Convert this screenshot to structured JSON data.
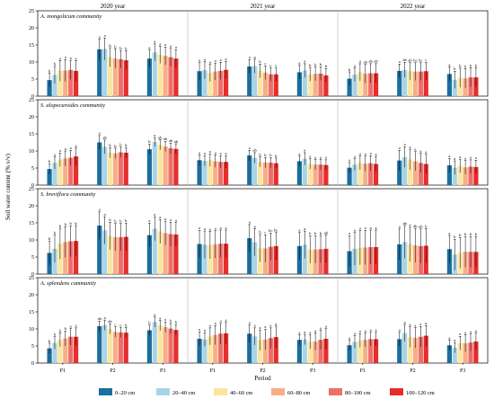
{
  "chart_data": {
    "type": "bar",
    "ylabel": "Soil water content (% v/v)",
    "xlabel": "Period",
    "ylim": [
      0,
      25
    ],
    "yticks": [
      0,
      5,
      10,
      15,
      20,
      25
    ],
    "years": [
      "2020 year",
      "2021 year",
      "2022 year"
    ],
    "periods": [
      "P1",
      "P2",
      "P3"
    ],
    "legend": {
      "position": "bottom",
      "entries": [
        "0–20 cm",
        "20–40 cm",
        "40–60 cm",
        "60–80 cm",
        "80–100 cm",
        "100–120 cm"
      ],
      "colors": [
        "#1b6e9e",
        "#a8d4e6",
        "#fbe5a0",
        "#f7ae86",
        "#ed6f6a",
        "#e62e2a"
      ]
    },
    "panels": [
      {
        "community": "A. mongolicum community",
        "groups": [
          {
            "means": [
              4.7,
              6.2,
              7.4,
              7.5,
              7.7,
              7.4
            ],
            "errors": [
              2.0,
              2.5,
              3.0,
              3.2,
              2.8,
              3.0
            ],
            "labels": [
              "b",
              "b",
              "a",
              "a",
              "a",
              "a"
            ]
          },
          {
            "means": [
              13.7,
              13.8,
              11.4,
              11.0,
              10.8,
              10.5
            ],
            "errors": [
              3.0,
              3.2,
              2.8,
              2.8,
              2.6,
              2.8
            ],
            "labels": [
              "a",
              "a",
              "b",
              "b",
              "b",
              "b"
            ]
          },
          {
            "means": [
              11.0,
              12.8,
              12.1,
              11.8,
              11.4,
              11.0
            ],
            "errors": [
              2.5,
              2.5,
              2.5,
              2.6,
              2.6,
              2.6
            ],
            "labels": [
              "a",
              "a",
              "a",
              "a",
              "a",
              "a"
            ]
          },
          {
            "means": [
              7.3,
              7.6,
              6.8,
              7.2,
              7.4,
              7.7
            ],
            "errors": [
              2.5,
              2.5,
              2.5,
              2.5,
              2.5,
              2.5
            ],
            "labels": [
              "a",
              "a",
              "a",
              "a",
              "a",
              "a"
            ]
          },
          {
            "means": [
              8.7,
              8.8,
              7.4,
              6.9,
              6.4,
              6.4
            ],
            "errors": [
              2.0,
              2.0,
              2.0,
              2.0,
              2.0,
              2.0
            ],
            "labels": [
              "a",
              "a",
              "b",
              "c",
              "c",
              "c"
            ]
          },
          {
            "means": [
              7.0,
              7.5,
              6.4,
              6.5,
              6.6,
              6.1
            ],
            "errors": [
              2.0,
              2.0,
              2.0,
              2.0,
              2.0,
              2.0
            ],
            "labels": [
              "a",
              "a",
              "b",
              "b",
              "b",
              "b"
            ]
          },
          {
            "means": [
              5.1,
              6.3,
              7.0,
              6.6,
              6.7,
              6.7
            ],
            "errors": [
              2.0,
              2.0,
              2.5,
              2.7,
              2.8,
              2.8
            ],
            "labels": [
              "b",
              "a",
              "a",
              "ab",
              "ab",
              "ab"
            ]
          },
          {
            "means": [
              7.4,
              7.7,
              7.3,
              7.2,
              7.2,
              7.3
            ],
            "errors": [
              2.0,
              2.2,
              2.5,
              2.6,
              2.6,
              2.6
            ],
            "labels": [
              "a",
              "ab",
              "ab",
              "bc",
              "bc",
              "c"
            ]
          },
          {
            "means": [
              6.5,
              4.8,
              5.4,
              5.2,
              5.5,
              5.5
            ],
            "errors": [
              2.0,
              2.5,
              2.8,
              2.8,
              2.8,
              2.8
            ],
            "labels": [
              "a",
              "b",
              "b",
              "b",
              "b",
              "b"
            ]
          }
        ]
      },
      {
        "community": "S. alopecuroides community",
        "groups": [
          {
            "means": [
              4.7,
              6.5,
              7.4,
              7.8,
              8.0,
              8.4
            ],
            "errors": [
              1.5,
              1.8,
              2.0,
              2.2,
              2.2,
              2.5
            ],
            "labels": [
              "b",
              "a",
              "a",
              "a",
              "a",
              "a"
            ]
          },
          {
            "means": [
              12.5,
              11.2,
              9.5,
              9.3,
              9.6,
              9.5
            ],
            "errors": [
              2.0,
              2.0,
              1.5,
              1.5,
              1.5,
              1.5
            ],
            "labels": [
              "a",
              "ab",
              "b",
              "b",
              "b",
              "b"
            ]
          },
          {
            "means": [
              10.5,
              12.6,
              11.8,
              11.3,
              10.8,
              10.6
            ],
            "errors": [
              1.5,
              1.3,
              1.5,
              1.5,
              1.5,
              1.5
            ],
            "labels": [
              "b",
              "a",
              "ab",
              "ab",
              "ab",
              "ab"
            ]
          },
          {
            "means": [
              7.3,
              7.1,
              7.3,
              7.0,
              6.8,
              6.8
            ],
            "errors": [
              1.5,
              1.5,
              1.8,
              1.8,
              1.8,
              1.8
            ],
            "labels": [
              "a",
              "a",
              "a",
              "a",
              "a",
              "a"
            ]
          },
          {
            "means": [
              8.7,
              8.0,
              6.8,
              6.6,
              6.6,
              6.4
            ],
            "errors": [
              1.5,
              1.5,
              1.5,
              1.5,
              1.5,
              1.5
            ],
            "labels": [
              "a",
              "ab",
              "b",
              "b",
              "b",
              "b"
            ]
          },
          {
            "means": [
              7.0,
              7.7,
              6.2,
              6.0,
              6.0,
              5.9
            ],
            "errors": [
              1.5,
              1.8,
              1.5,
              1.5,
              1.5,
              1.5
            ],
            "labels": [
              "a",
              "a",
              "a",
              "a",
              "a",
              "a"
            ]
          },
          {
            "means": [
              5.1,
              6.0,
              6.5,
              6.3,
              6.4,
              6.2
            ],
            "errors": [
              1.5,
              1.7,
              2.0,
              2.2,
              2.2,
              2.2
            ],
            "labels": [
              "a",
              "a",
              "a",
              "a",
              "a",
              "a"
            ]
          },
          {
            "means": [
              7.2,
              8.2,
              7.5,
              7.0,
              6.5,
              6.2
            ],
            "errors": [
              3.0,
              3.0,
              3.0,
              2.8,
              2.8,
              2.8
            ],
            "labels": [
              "a",
              "a",
              "a",
              "a",
              "a",
              "a"
            ]
          },
          {
            "means": [
              5.8,
              5.1,
              5.6,
              5.2,
              5.4,
              5.3
            ],
            "errors": [
              2.0,
              2.0,
              2.0,
              2.0,
              2.0,
              2.0
            ],
            "labels": [
              "a",
              "a",
              "a",
              "a",
              "a",
              "a"
            ]
          }
        ]
      },
      {
        "community": "S. breviflora community",
        "groups": [
          {
            "means": [
              6.2,
              7.4,
              8.9,
              9.4,
              9.6,
              9.7
            ],
            "errors": [
              3.5,
              4.0,
              4.5,
              4.5,
              4.5,
              4.5
            ],
            "labels": [
              "b",
              "b",
              "b",
              "b",
              "b",
              "b"
            ]
          },
          {
            "means": [
              14.2,
              12.8,
              11.2,
              10.8,
              10.8,
              10.9
            ],
            "errors": [
              4.0,
              4.0,
              4.0,
              4.0,
              4.0,
              4.0
            ],
            "labels": [
              "a",
              "a",
              "b",
              "b",
              "b",
              "b"
            ]
          },
          {
            "means": [
              11.4,
              13.3,
              12.5,
              12.0,
              11.7,
              11.6
            ],
            "errors": [
              3.5,
              3.5,
              3.5,
              3.5,
              3.5,
              3.5
            ],
            "labels": [
              "a",
              "a",
              "a",
              "a",
              "a",
              "a"
            ]
          },
          {
            "means": [
              8.8,
              8.6,
              8.5,
              8.7,
              8.9,
              8.9
            ],
            "errors": [
              4.0,
              4.0,
              4.0,
              4.0,
              4.0,
              4.0
            ],
            "labels": [
              "a",
              "a",
              "a",
              "a",
              "a",
              "a"
            ]
          },
          {
            "means": [
              10.5,
              9.3,
              7.6,
              7.5,
              8.0,
              8.2
            ],
            "errors": [
              4.0,
              4.0,
              4.0,
              4.0,
              4.0,
              4.0
            ],
            "labels": [
              "a",
              "a",
              "b",
              "c",
              "bc",
              "bc"
            ]
          },
          {
            "means": [
              8.2,
              8.6,
              7.2,
              7.2,
              7.3,
              7.4
            ],
            "errors": [
              4.0,
              4.0,
              4.0,
              4.0,
              4.0,
              4.0
            ],
            "labels": [
              "a",
              "a",
              "b",
              "b",
              "b",
              "ab"
            ]
          },
          {
            "means": [
              6.7,
              7.4,
              7.7,
              7.8,
              7.9,
              7.9
            ],
            "errors": [
              4.5,
              4.8,
              5.0,
              5.0,
              5.0,
              5.0
            ],
            "labels": [
              "a",
              "a",
              "a",
              "a",
              "a",
              "a"
            ]
          },
          {
            "means": [
              8.7,
              9.4,
              8.7,
              8.4,
              8.2,
              8.3
            ],
            "errors": [
              4.5,
              4.8,
              5.0,
              5.0,
              5.0,
              5.0
            ],
            "labels": [
              "a",
              "ab",
              "a",
              "ab",
              "ab",
              "b"
            ]
          },
          {
            "means": [
              7.3,
              5.7,
              6.2,
              6.5,
              6.5,
              6.5
            ],
            "errors": [
              4.0,
              4.5,
              4.5,
              4.5,
              4.5,
              4.5
            ],
            "labels": [
              "a",
              "b",
              "b",
              "b",
              "b",
              "b"
            ]
          }
        ]
      },
      {
        "community": "A. splendens community",
        "groups": [
          {
            "means": [
              4.3,
              5.9,
              6.8,
              7.2,
              7.7,
              7.7
            ],
            "errors": [
              1.5,
              1.8,
              2.0,
              2.2,
              2.4,
              2.6
            ],
            "labels": [
              "b",
              "b",
              "b",
              "b",
              "a",
              "a"
            ]
          },
          {
            "means": [
              10.8,
              11.1,
              10.0,
              9.1,
              9.0,
              8.9
            ],
            "errors": [
              1.5,
              1.5,
              1.5,
              1.5,
              1.5,
              1.5
            ],
            "labels": [
              "ab",
              "a",
              "ab",
              "c",
              "c",
              "b"
            ]
          },
          {
            "means": [
              9.6,
              12.0,
              11.0,
              10.5,
              10.1,
              9.7
            ],
            "errors": [
              1.5,
              1.5,
              1.5,
              1.5,
              1.5,
              1.5
            ],
            "labels": [
              "b",
              "a",
              "a",
              "a",
              "b",
              "b"
            ]
          },
          {
            "means": [
              7.1,
              6.9,
              7.8,
              8.2,
              8.6,
              8.7
            ],
            "errors": [
              2.0,
              2.0,
              2.5,
              2.8,
              3.0,
              3.2
            ],
            "labels": [
              "a",
              "a",
              "a",
              "a",
              "a",
              "a"
            ]
          },
          {
            "means": [
              8.6,
              7.8,
              6.7,
              6.9,
              7.3,
              7.6
            ],
            "errors": [
              2.5,
              2.5,
              3.0,
              3.0,
              3.0,
              3.2
            ],
            "labels": [
              "a",
              "a",
              "a",
              "a",
              "a",
              "a"
            ]
          },
          {
            "means": [
              6.8,
              6.9,
              6.2,
              6.3,
              6.8,
              7.1
            ],
            "errors": [
              1.5,
              1.5,
              2.0,
              2.5,
              2.8,
              3.0
            ],
            "labels": [
              "a",
              "a",
              "a",
              "a",
              "a",
              "a"
            ]
          },
          {
            "means": [
              5.2,
              6.2,
              6.6,
              6.8,
              7.0,
              7.0
            ],
            "errors": [
              1.5,
              1.8,
              2.0,
              2.0,
              2.0,
              2.0
            ],
            "labels": [
              "a",
              "a",
              "a",
              "a",
              "a",
              "a"
            ]
          },
          {
            "means": [
              7.0,
              8.8,
              7.6,
              7.4,
              7.7,
              8.0
            ],
            "errors": [
              2.0,
              2.5,
              3.0,
              3.0,
              3.0,
              3.0
            ],
            "labels": [
              "a",
              "a",
              "a",
              "a",
              "a",
              "a"
            ]
          },
          {
            "means": [
              5.2,
              4.5,
              5.8,
              5.8,
              6.0,
              6.3
            ],
            "errors": [
              1.5,
              1.5,
              2.0,
              2.5,
              2.5,
              2.5
            ],
            "labels": [
              "a",
              "a",
              "a",
              "a",
              "a",
              "a"
            ]
          }
        ]
      }
    ]
  }
}
